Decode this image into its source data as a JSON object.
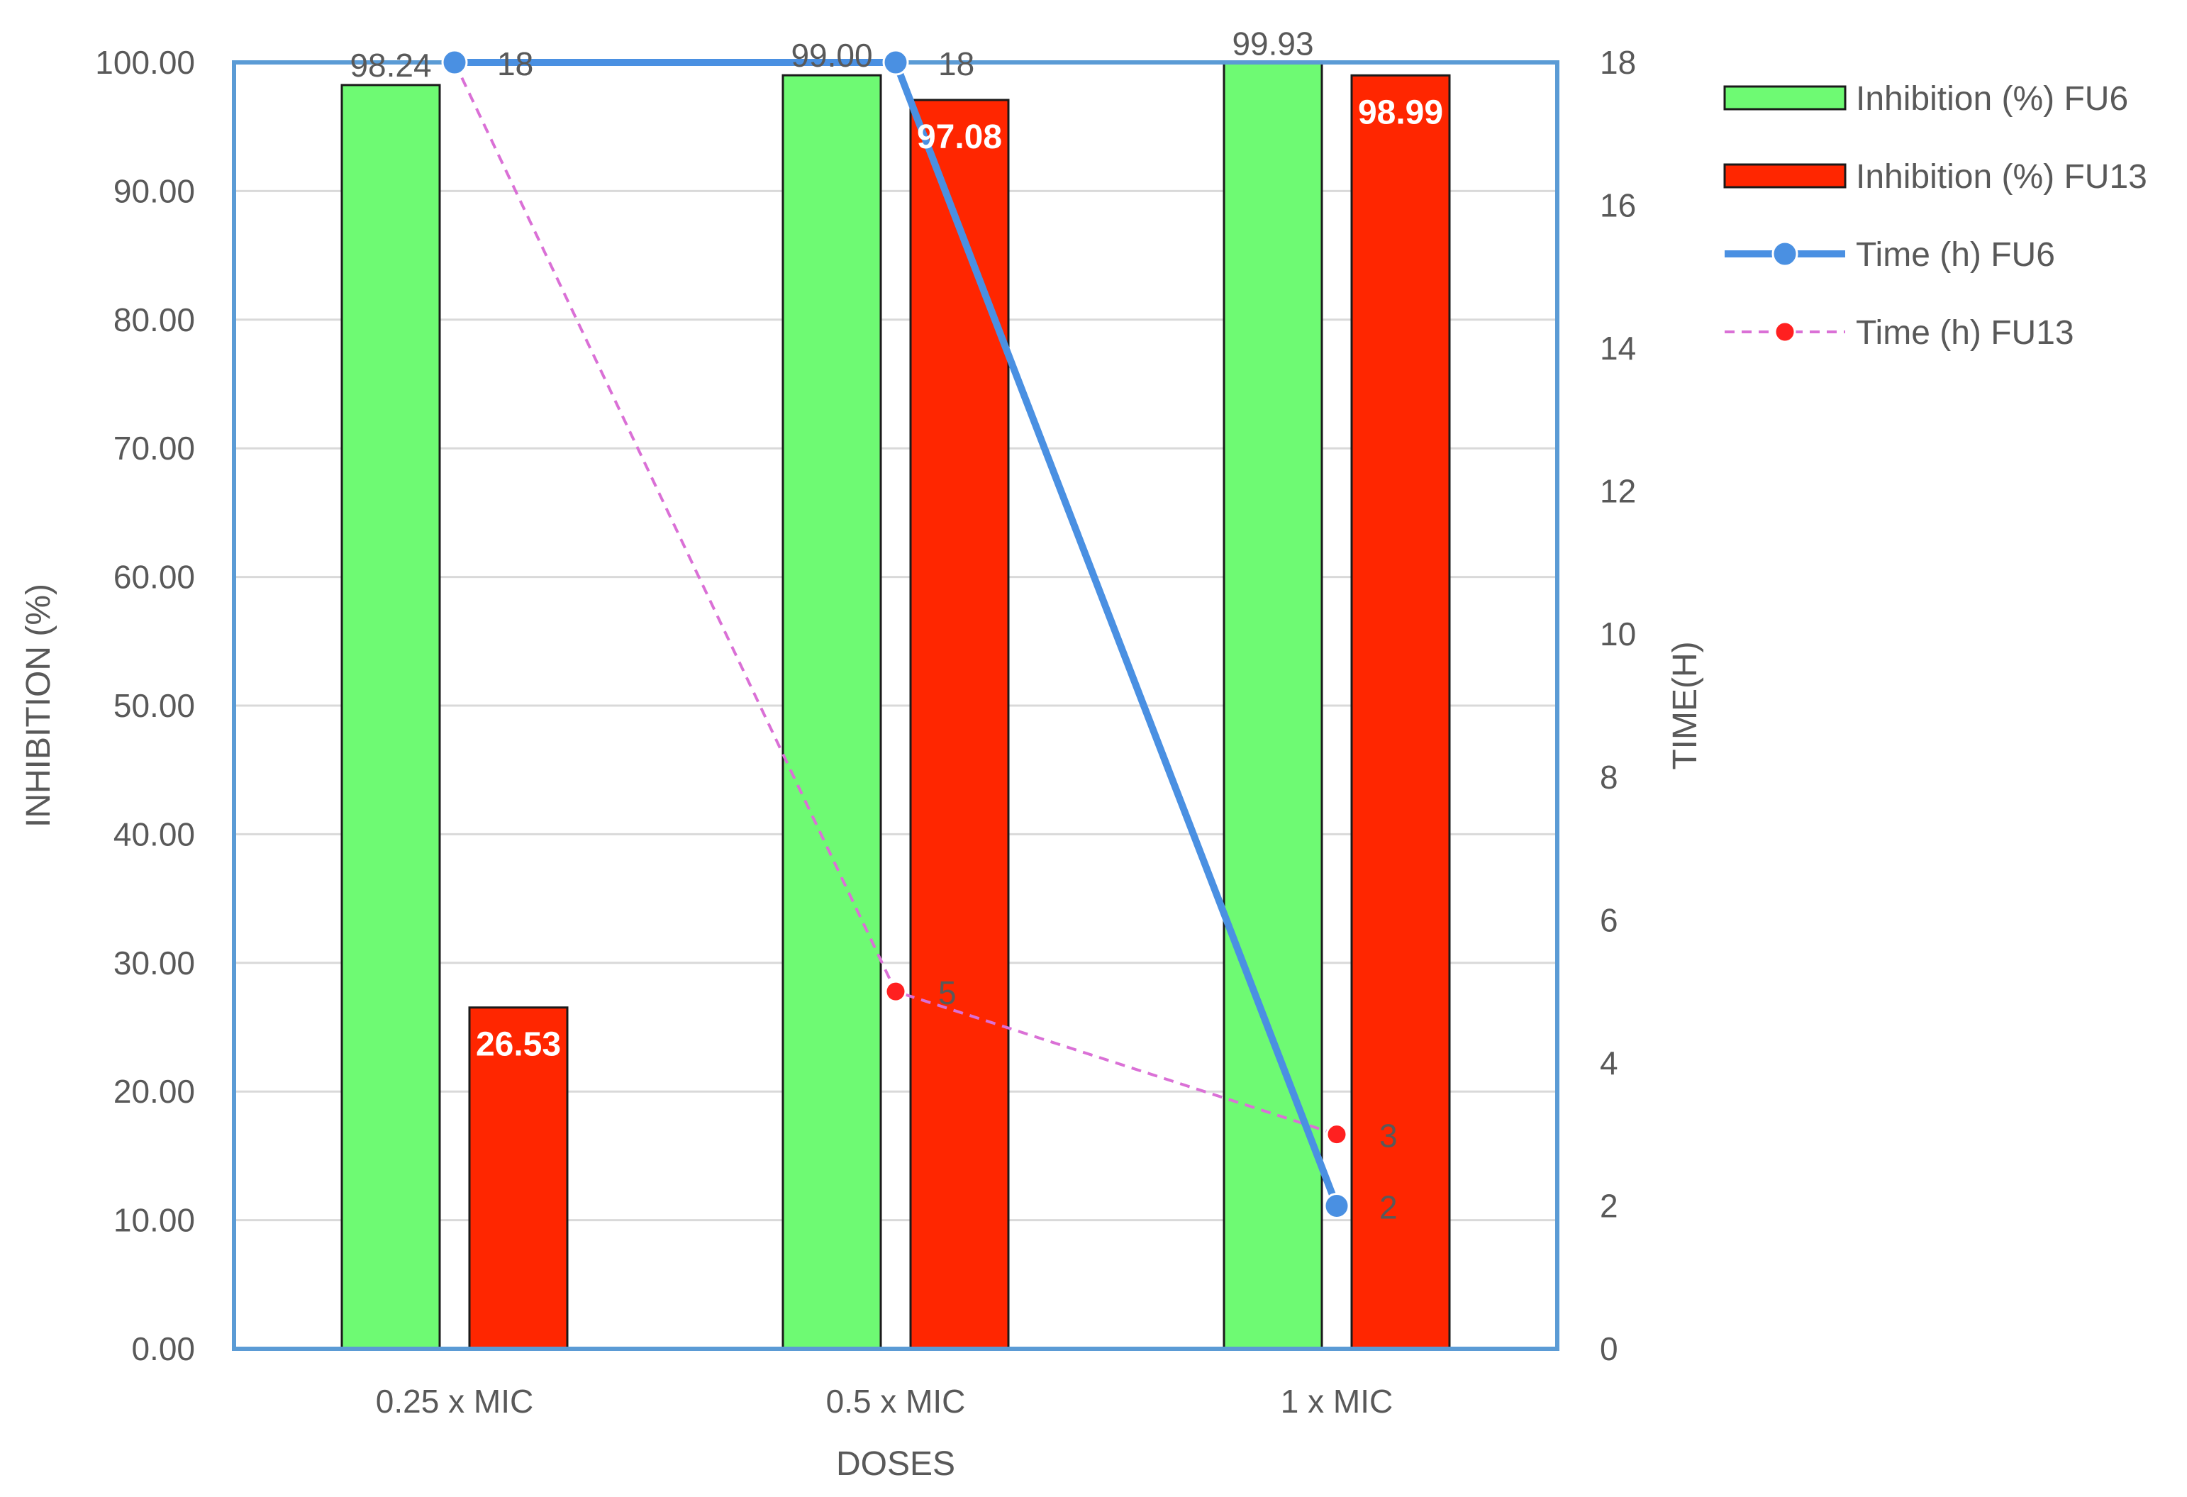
{
  "chart_data": {
    "type": "bar",
    "categories": [
      "0.25 x MIC",
      "0.5 x MIC",
      "1 x MIC"
    ],
    "xlabel": "DOSES",
    "ylabel": "INHIBITION (%)",
    "y2label": "TIME(H)",
    "ylim": [
      0,
      100
    ],
    "y2lim": [
      0,
      18
    ],
    "yticks": [
      "0.00",
      "10.00",
      "20.00",
      "30.00",
      "40.00",
      "50.00",
      "60.00",
      "70.00",
      "80.00",
      "90.00",
      "100.00"
    ],
    "y2ticks": [
      "0",
      "2",
      "4",
      "6",
      "8",
      "10",
      "12",
      "14",
      "16",
      "18"
    ],
    "grid": true,
    "legend_position": "right",
    "series": [
      {
        "name": "Inhibition (%) FU6",
        "type": "bar",
        "axis": "left",
        "values": [
          98.24,
          99.0,
          99.93
        ],
        "labels": [
          "98.24",
          "99.00",
          "99.93"
        ],
        "color": "#6EFA73"
      },
      {
        "name": "Inhibition (%) FU13",
        "type": "bar",
        "axis": "left",
        "values": [
          26.53,
          97.08,
          98.99
        ],
        "labels": [
          "26.53",
          "97.08",
          "98.99"
        ],
        "color": "#FF2600"
      },
      {
        "name": "Time (h) FU6",
        "type": "line",
        "axis": "right",
        "values": [
          18,
          18,
          2
        ],
        "labels": [
          "18",
          "18",
          "2"
        ],
        "color": "#4A90E2"
      },
      {
        "name": "Time (h) FU13",
        "type": "line",
        "axis": "right",
        "values": [
          18,
          5,
          3
        ],
        "labels": [
          "18",
          "5",
          "3"
        ],
        "color": "#DA70D6",
        "marker_color": "#FF2020"
      }
    ]
  }
}
